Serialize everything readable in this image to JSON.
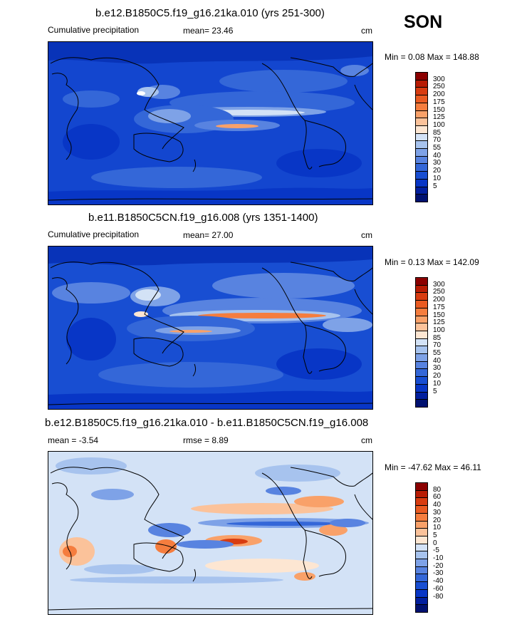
{
  "season": "SON",
  "panels": [
    {
      "title": "b.e12.B1850C5.f19_g16.21ka.010 (yrs 251-300)",
      "left_label": "Cumulative precipitation",
      "mid_label": "mean=  23.46",
      "units": "cm",
      "minmax": "Min =   0.08 Max = 148.88",
      "colorbar": {
        "colors": [
          "#8b0000",
          "#b81c04",
          "#d83c10",
          "#ea5b22",
          "#f57d3e",
          "#f9a169",
          "#fbc29a",
          "#fde6d2",
          "#d3e2f6",
          "#a7c3ee",
          "#7ea2e7",
          "#5883e0",
          "#3467d8",
          "#184ed2",
          "#0836c6",
          "#021f9e",
          "#001170"
        ],
        "labels": [
          "300",
          "250",
          "200",
          "175",
          "150",
          "125",
          "100",
          "85",
          "70",
          "55",
          "40",
          "30",
          "20",
          "10",
          "5"
        ]
      }
    },
    {
      "title": "b.e11.B1850C5CN.f19_g16.008 (yrs 1351-1400)",
      "left_label": "Cumulative precipitation",
      "mid_label": "mean=  27.00",
      "units": "cm",
      "minmax": "Min =   0.13 Max = 142.09",
      "colorbar": {
        "colors": [
          "#8b0000",
          "#b81c04",
          "#d83c10",
          "#ea5b22",
          "#f57d3e",
          "#f9a169",
          "#fbc29a",
          "#fde6d2",
          "#d3e2f6",
          "#a7c3ee",
          "#7ea2e7",
          "#5883e0",
          "#3467d8",
          "#184ed2",
          "#0836c6",
          "#021f9e",
          "#001170"
        ],
        "labels": [
          "300",
          "250",
          "200",
          "175",
          "150",
          "125",
          "100",
          "85",
          "70",
          "55",
          "40",
          "30",
          "20",
          "10",
          "5"
        ]
      }
    },
    {
      "title": "b.e12.B1850C5.f19_g16.21ka.010 - b.e11.B1850C5CN.f19_g16.008",
      "left_label": "mean =  -3.54",
      "mid_label": "rmse =   8.89",
      "units": "cm",
      "minmax": "Min = -47.62 Max =  46.11",
      "colorbar": {
        "colors": [
          "#8b0000",
          "#b81c04",
          "#d83c10",
          "#ea5b22",
          "#f57d3e",
          "#f9a169",
          "#fbc29a",
          "#fde6d2",
          "#d3e2f6",
          "#a7c3ee",
          "#7ea2e7",
          "#5883e0",
          "#3467d8",
          "#184ed2",
          "#0836c6",
          "#021f9e",
          "#001170"
        ],
        "labels": [
          "80",
          "60",
          "40",
          "30",
          "20",
          "10",
          "5",
          "0",
          "-5",
          "-10",
          "-20",
          "-30",
          "-40",
          "-60",
          "-80"
        ]
      }
    }
  ]
}
